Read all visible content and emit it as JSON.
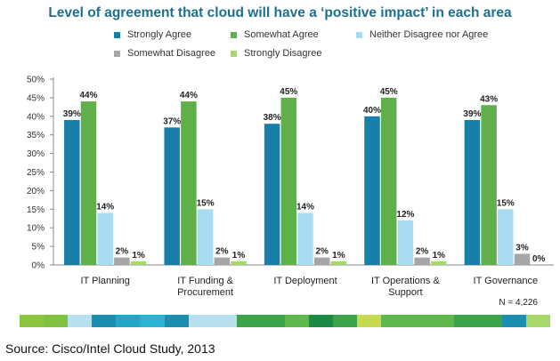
{
  "chart_data": {
    "type": "bar",
    "title": "Level of agreement that cloud will have a ‘positive impact’ in each area",
    "categories": [
      [
        "IT Planning"
      ],
      [
        "IT Funding &",
        "Procurement"
      ],
      [
        "IT Deployment"
      ],
      [
        "IT Operations &",
        "Support"
      ],
      [
        "IT Governance"
      ]
    ],
    "series": [
      {
        "name": "Strongly Agree",
        "color": "#1a7fa8",
        "values": [
          39,
          37,
          38,
          40,
          39
        ]
      },
      {
        "name": "Somewhat Agree",
        "color": "#5fb04a",
        "values": [
          44,
          44,
          45,
          45,
          43
        ]
      },
      {
        "name": "Neither Disagree nor Agree",
        "color": "#a8dcf2",
        "values": [
          14,
          15,
          14,
          12,
          15
        ]
      },
      {
        "name": "Somewhat Disagree",
        "color": "#a6a6a6",
        "values": [
          2,
          2,
          2,
          2,
          3
        ]
      },
      {
        "name": "Strongly Disagree",
        "color": "#a8d86a",
        "values": [
          1,
          1,
          1,
          1,
          0
        ]
      }
    ],
    "yticks": [
      "0%",
      "5%",
      "10%",
      "15%",
      "20%",
      "25%",
      "30%",
      "35%",
      "40%",
      "45%",
      "50%"
    ],
    "ylim": [
      0,
      50
    ],
    "xlabel": "",
    "ylabel": "",
    "annotation": "N = 4,226",
    "legend_position": "top"
  },
  "footer": {
    "source": "Source: Cisco/Intel Cloud Study, 2013",
    "strip_colors": [
      "#8cc63f",
      "#7fc241",
      "#b7e1ef",
      "#1c8fb0",
      "#23a7c9",
      "#2bb3d3",
      "#1c8fb0",
      "#b7e1ef",
      "#b7e1ef",
      "#3ca34a",
      "#3ca34a",
      "#5fb84b",
      "#1a8a45",
      "#3ca34a",
      "#c7d94e",
      "#5fb84b",
      "#5fb84b",
      "#5fb84b",
      "#3ca34a",
      "#3ca34a",
      "#1c8fb0",
      "#a8d86a"
    ]
  }
}
